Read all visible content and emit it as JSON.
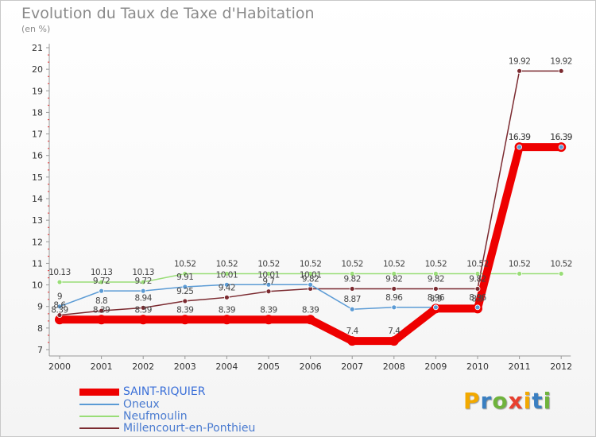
{
  "title": "Evolution du Taux de Taxe d'Habitation",
  "subtitle": "(en %)",
  "brand": {
    "letters": [
      "P",
      "r",
      "o",
      "x",
      "i",
      "t",
      "i"
    ],
    "colors": [
      "#f2a900",
      "#3a7fc1",
      "#6fb33c",
      "#e8402f",
      "#f2a900",
      "#3a7fc1",
      "#6fb33c"
    ]
  },
  "chart_data": {
    "type": "line",
    "title": "Evolution du Taux de Taxe d'Habitation",
    "ylabel": "(en %)",
    "xlabel": "",
    "ylim": [
      7,
      21
    ],
    "yticks": [
      "7",
      "8",
      "9",
      "10",
      "11",
      "12",
      "13",
      "14",
      "15",
      "16",
      "17",
      "18",
      "19",
      "20",
      "21"
    ],
    "categories": [
      "2000",
      "2001",
      "2002",
      "2003",
      "2004",
      "2005",
      "2006",
      "2007",
      "2008",
      "2009",
      "2010",
      "2011",
      "2012"
    ],
    "series": [
      {
        "name": "SAINT-RIQUIER",
        "color": "#ee0000",
        "values": [
          8.39,
          8.39,
          8.39,
          8.39,
          8.39,
          8.39,
          8.39,
          7.4,
          7.4,
          8.9,
          8.9,
          16.39,
          16.39
        ],
        "labels": [
          "8.39",
          "8.39",
          "8.39",
          "8.39",
          "8.39",
          "8.39",
          "8.39",
          "7.4",
          "7.4",
          "8.9",
          "8.9",
          "16.39",
          "16.39"
        ]
      },
      {
        "name": "Oneux",
        "color": "#5b9bd5",
        "values": [
          9.0,
          9.72,
          9.72,
          9.91,
          10.01,
          10.01,
          10.01,
          8.87,
          8.96,
          8.96,
          8.96,
          16.39,
          16.39
        ],
        "labels": [
          "9",
          "9.72",
          "9.72",
          "9.91",
          "10.01",
          "10.01",
          "10.01",
          "8.87",
          "8.96",
          "8.96",
          "8.96",
          "16.39",
          "16.39"
        ]
      },
      {
        "name": "Neufmoulin",
        "color": "#99dd77",
        "values": [
          10.13,
          10.13,
          10.13,
          10.52,
          10.52,
          10.52,
          10.52,
          10.52,
          10.52,
          10.52,
          10.52,
          10.52,
          10.52
        ],
        "labels": [
          "10.13",
          "10.13",
          "10.13",
          "10.52",
          "10.52",
          "10.52",
          "10.52",
          "10.52",
          "10.52",
          "10.52",
          "10.52",
          "10.52",
          "10.52"
        ]
      },
      {
        "name": "Millencourt-en-Ponthieu",
        "color": "#7b2a30",
        "values": [
          8.6,
          8.8,
          8.94,
          9.25,
          9.42,
          9.7,
          9.82,
          9.82,
          9.82,
          9.82,
          9.82,
          19.92,
          19.92
        ],
        "labels": [
          "8.6",
          "8.8",
          "8.94",
          "9.25",
          "9.42",
          "9.7",
          "9.82",
          "9.82",
          "9.82",
          "9.82",
          "9.82",
          "19.92",
          "19.92"
        ]
      }
    ]
  }
}
